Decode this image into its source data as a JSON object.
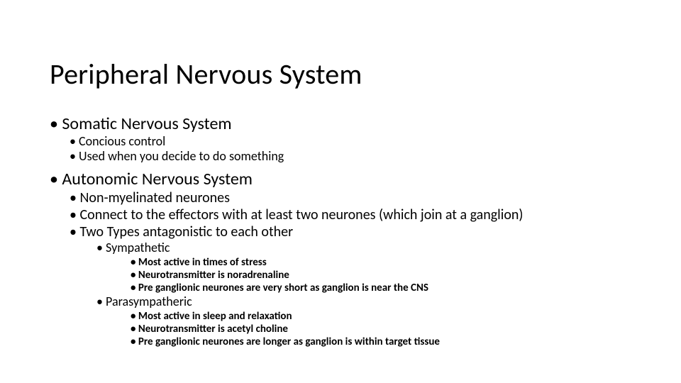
{
  "title": "Peripheral Nervous System",
  "sections": [
    {
      "heading": "Somatic Nervous System",
      "items": [
        "Concious control",
        "Used when you decide to do something"
      ]
    },
    {
      "heading": "Autonomic Nervous System",
      "items2": [
        "Non-myelinated neurones",
        "Connect to the effectors with at least two neurones (which join at a ganglion)",
        "Two Types antagonistic to each other"
      ],
      "subtypes": [
        {
          "name": "Sympathetic",
          "details": [
            "Most active in times of stress",
            "Neurotransmitter is noradrenaline",
            "Pre ganglionic neurones are very short as ganglion is near the CNS"
          ]
        },
        {
          "name": "Parasympatheric",
          "details": [
            "Most active in sleep and relaxation",
            "Neurotransmitter is acetyl choline",
            "Pre ganglionic neurones are longer as ganglion is within target tissue"
          ]
        }
      ]
    }
  ],
  "colors": {
    "text": "#000000",
    "background": "#ffffff"
  },
  "fontsizes": {
    "title": 40,
    "lvl1": 24,
    "lvl2a": 18,
    "lvl2b": 20,
    "lvl3": 18,
    "lvl4": 15
  }
}
